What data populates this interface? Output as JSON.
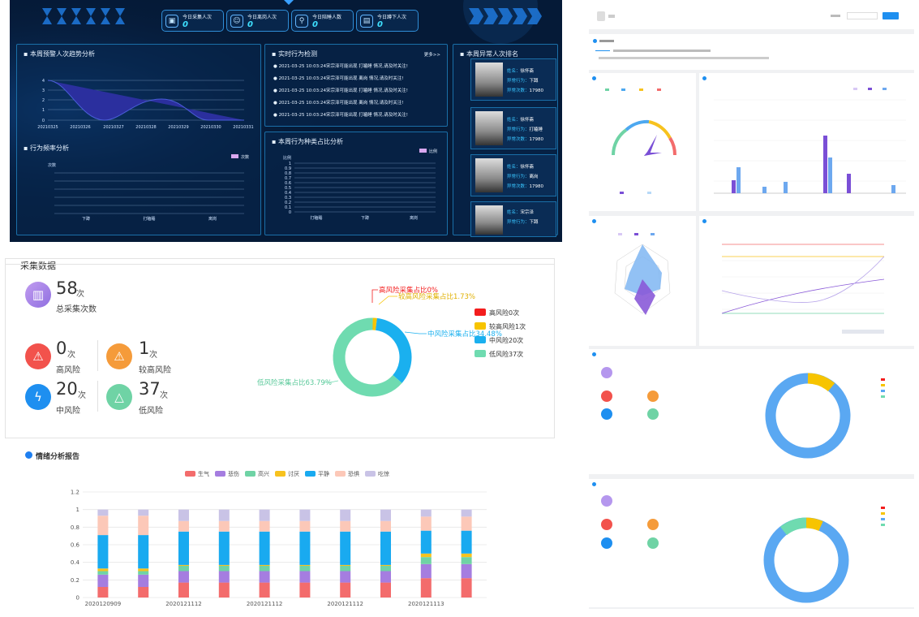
{
  "dashboard": {
    "kpis": [
      {
        "label": "今日采集人次",
        "value": "0",
        "icon": "video-icon"
      },
      {
        "label": "今日离岗人次",
        "value": "0",
        "icon": "person-icon"
      },
      {
        "label": "今日陪睡人数",
        "value": "0",
        "icon": "person-search-icon"
      },
      {
        "label": "今日蹲下人次",
        "value": "0",
        "icon": "document-icon"
      }
    ],
    "trend": {
      "title": "本周预警人次趋势分析",
      "y_ticks": [
        "0",
        "1",
        "2",
        "3",
        "4"
      ],
      "x_labels": [
        "20210325",
        "20210326",
        "20210327",
        "20210328",
        "20210329",
        "20210330",
        "20210331"
      ]
    },
    "freq": {
      "title": "行为频率分析",
      "legend": "次数",
      "ylabel": "次数",
      "x_labels": [
        "下蹲",
        "打瞌睡",
        "离岗"
      ]
    },
    "realtime": {
      "title": "实时行为检测",
      "more": "更多>>",
      "items": [
        "2021-03-25 10:03:24宋宗泽可能出现 打瞌睡 情况,请及时关注!",
        "2021-03-25 10:03:24宋宗泽可能出现 离岗 情况,请及时关注!",
        "2021-03-25 10:03:24宋宗泽可能出现 打瞌睡 情况,请及时关注!",
        "2021-03-25 10:03:24宋宗泽可能出现 离岗 情况,请及时关注!",
        "2021-03-25 10:03:24宋宗泽可能出现 打瞌睡 情况,请及时关注!"
      ]
    },
    "ratio": {
      "title": "本周行为种类占比分析",
      "legend": "比例",
      "ylabel": "比例",
      "y_ticks": [
        "0",
        "0.1",
        "0.2",
        "0.3",
        "0.4",
        "0.5",
        "0.6",
        "0.7",
        "0.8",
        "0.9",
        "1"
      ],
      "x_labels": [
        "打瞌睡",
        "下蹲",
        "离岗"
      ]
    },
    "ranking": {
      "title": "本周异常人次排名",
      "people": [
        {
          "name_key": "姓名：",
          "name": "徐怀斋",
          "behavior_key": "异常行为：",
          "behavior": "下蹲",
          "count_key": "异常次数：",
          "count": "17980"
        },
        {
          "name_key": "姓名：",
          "name": "徐怀斋",
          "behavior_key": "异常行为：",
          "behavior": "打瞌睡",
          "count_key": "异常次数：",
          "count": "17980"
        },
        {
          "name_key": "姓名：",
          "name": "徐怀斋",
          "behavior_key": "异常行为：",
          "behavior": "离岗",
          "count_key": "异常次数：",
          "count": "17980"
        },
        {
          "name_key": "姓名：",
          "name": "宋宗泽",
          "behavior_key": "异常行为：",
          "behavior": "下蹲",
          "count_key": "",
          "count": ""
        }
      ]
    }
  },
  "collect": {
    "title": "采集数据",
    "total": {
      "value": "58",
      "unit": "次",
      "label": "总采集次数"
    },
    "stats": [
      {
        "value": "0",
        "unit": "次",
        "label": "高风险",
        "color": "#f2524c",
        "icon": "alarm-icon"
      },
      {
        "value": "1",
        "unit": "次",
        "label": "较高风险",
        "color": "#f59b3a",
        "icon": "alarm-icon"
      },
      {
        "value": "20",
        "unit": "次",
        "label": "中风险",
        "color": "#1e8ff0",
        "icon": "lightning-icon"
      },
      {
        "value": "37",
        "unit": "次",
        "label": "低风险",
        "color": "#6fd3a5",
        "icon": "warning-icon"
      }
    ],
    "donut_labels": [
      "高风险采集占比0%",
      "较高风险采集占比1.73%",
      "中风险采集占比34.48%",
      "低风险采集占比63.79%"
    ],
    "legend": [
      "高风险0次",
      "较高风险1次",
      "中风险20次",
      "低风险37次"
    ]
  },
  "chart_data": [
    {
      "type": "pie",
      "title": "",
      "categories": [
        "高风险",
        "较高风险",
        "中风险",
        "低风险"
      ],
      "values": [
        0,
        1.73,
        34.48,
        63.79
      ],
      "colors": [
        "#f31d1d",
        "#f7c400",
        "#1ab0ef",
        "#6fdbb0"
      ]
    },
    {
      "type": "bar",
      "title": "情绪分析报告",
      "stacked": true,
      "categories": [
        "2020120909",
        "",
        "2020121112",
        "",
        "2020121112",
        "",
        "2020121112",
        "",
        "2020121113",
        ""
      ],
      "ylim": [
        0,
        1.2
      ],
      "y_ticks": [
        "0",
        "0.2",
        "0.4",
        "0.6",
        "0.8",
        "1",
        "1.2"
      ],
      "series": [
        {
          "name": "生气",
          "color": "#f36c6c",
          "values": [
            0.12,
            0.12,
            0.17,
            0.17,
            0.17,
            0.17,
            0.17,
            0.17,
            0.22,
            0.22
          ]
        },
        {
          "name": "悲伤",
          "color": "#a57de0",
          "values": [
            0.14,
            0.14,
            0.13,
            0.13,
            0.13,
            0.13,
            0.13,
            0.13,
            0.16,
            0.16
          ]
        },
        {
          "name": "高兴",
          "color": "#6fd3a5",
          "values": [
            0.04,
            0.04,
            0.06,
            0.06,
            0.06,
            0.06,
            0.06,
            0.06,
            0.08,
            0.08
          ]
        },
        {
          "name": "讨厌",
          "color": "#f7c21e",
          "values": [
            0.03,
            0.03,
            0.01,
            0.01,
            0.01,
            0.01,
            0.01,
            0.01,
            0.04,
            0.04
          ]
        },
        {
          "name": "平静",
          "color": "#19aaf0",
          "values": [
            0.38,
            0.38,
            0.38,
            0.38,
            0.38,
            0.38,
            0.38,
            0.38,
            0.26,
            0.26
          ]
        },
        {
          "name": "恐惧",
          "color": "#fcc8b8",
          "values": [
            0.22,
            0.22,
            0.12,
            0.12,
            0.12,
            0.12,
            0.12,
            0.12,
            0.16,
            0.16
          ]
        },
        {
          "name": "吃惊",
          "color": "#c9c3e6",
          "values": [
            0.07,
            0.07,
            0.13,
            0.13,
            0.13,
            0.13,
            0.13,
            0.13,
            0.08,
            0.08
          ]
        }
      ]
    }
  ],
  "report": {
    "title": "情绪分析报告"
  }
}
